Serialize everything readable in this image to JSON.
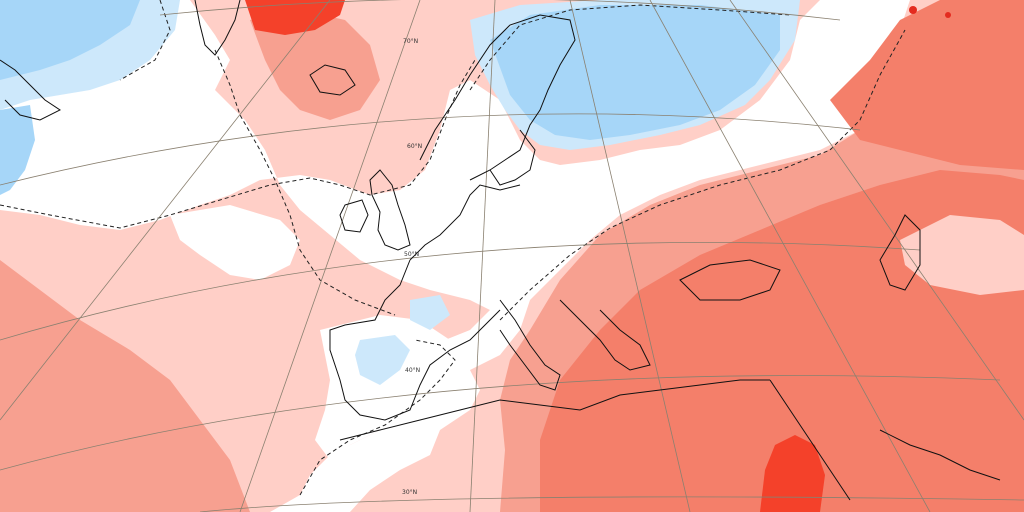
{
  "map": {
    "type": "temperature-anomaly",
    "colors": {
      "ocean_base": "#ffcfc7",
      "warm_1": "#ffcfc7",
      "warm_2": "#f7a090",
      "warm_3": "#f47f6a",
      "warm_4": "#f4412a",
      "warm_5": "#e42b1f",
      "neutral": "#ffffff",
      "cool_1": "#cde8fb",
      "cool_2": "#a6d6f8",
      "cool_3": "#7fc0ef",
      "coastline": "#111111",
      "contour_dashed": "#222222",
      "graticule": "#8a8070"
    },
    "latitude_labels": {
      "lat70": "70°N",
      "lat60": "60°N",
      "lat50": "50°N",
      "lat40": "40°N",
      "lat30": "30°N"
    }
  }
}
